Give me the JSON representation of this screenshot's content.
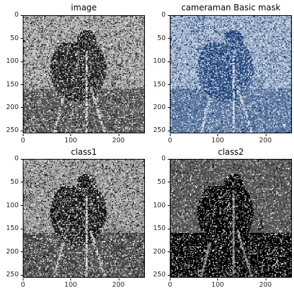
{
  "figure": {
    "panels": [
      {
        "id": "image",
        "title": "image",
        "colormap": "gray",
        "noise_density": 0.48,
        "brightness_bias": 0.0
      },
      {
        "id": "mask",
        "title": "cameraman Basic mask",
        "colormap": "blues",
        "noise_density": 0.5,
        "brightness_bias": 0.0
      },
      {
        "id": "class1",
        "title": "class1",
        "colormap": "gray",
        "noise_density": 0.46,
        "brightness_bias": -0.05
      },
      {
        "id": "class2",
        "title": "class2",
        "colormap": "gray",
        "noise_density": 0.3,
        "brightness_bias": -0.35
      }
    ],
    "y_ticks": [
      "0",
      "50",
      "100",
      "150",
      "200",
      "250"
    ],
    "x_ticks": [
      "0",
      "100",
      "200"
    ],
    "x_tick_values": [
      0,
      100,
      200
    ],
    "y_tick_values": [
      0,
      50,
      100,
      150,
      200,
      250
    ],
    "image_extent": [
      256,
      256
    ],
    "colors": {
      "blues_dark": "#08306b",
      "blues_mid": "#2171b5",
      "blues_light": "#f7fbff"
    }
  }
}
